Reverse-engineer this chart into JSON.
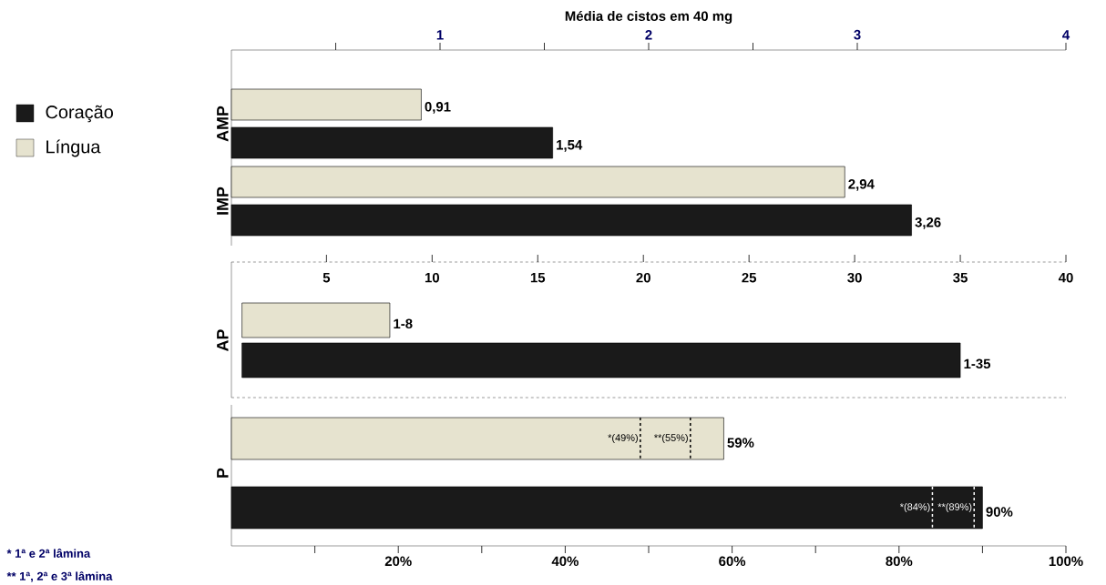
{
  "chart_data": [
    {
      "type": "bar",
      "orientation": "horizontal",
      "xlabel": "Média de cistos em 40 mg",
      "categories": [
        "AMP",
        "IMP"
      ],
      "series": [
        {
          "name": "Coração",
          "color": "#1a1a1a",
          "values": [
            1.54,
            3.26
          ],
          "value_labels": [
            "1,54",
            "3,26"
          ]
        },
        {
          "name": "Língua",
          "color": "#e6e3cf",
          "values": [
            0.91,
            2.94
          ],
          "value_labels": [
            "0,91",
            "2,94"
          ]
        }
      ],
      "xlim": [
        0,
        4
      ],
      "xticks": [
        {
          "value": 0.5,
          "label": null
        },
        1,
        {
          "value": 1.5,
          "label": null
        },
        2,
        {
          "value": 2.5,
          "label": null
        },
        3,
        4
      ],
      "legend": "left"
    },
    {
      "type": "bar",
      "orientation": "horizontal",
      "categories": [
        "AP"
      ],
      "series": [
        {
          "color": "#1a1a1a",
          "base": [
            1
          ],
          "values": [
            34
          ],
          "value_labels": [
            "1-35"
          ]
        },
        {
          "color": "#e6e3cf",
          "base": [
            1
          ],
          "values": [
            7
          ],
          "value_labels": [
            "1-8"
          ]
        }
      ],
      "xlim": [
        0.5,
        40
      ],
      "xticks": [
        5,
        10,
        15,
        20,
        25,
        30,
        35,
        40
      ]
    },
    {
      "type": "bar",
      "orientation": "horizontal",
      "categories": [
        "P"
      ],
      "series": [
        {
          "color": "#1a1a1a",
          "values": [
            90
          ],
          "value_labels": [
            "90%"
          ]
        },
        {
          "color": "#e6e3cf",
          "values": [
            59
          ],
          "value_labels": [
            "59%"
          ]
        }
      ],
      "xlim": [
        0,
        100
      ],
      "xticks": [
        {
          "value": 10,
          "label": null
        },
        {
          "value": 20,
          "label": "20%"
        },
        {
          "value": 30,
          "label": null
        },
        {
          "value": 40,
          "label": "40%"
        },
        {
          "value": 50,
          "label": null
        },
        {
          "value": 60,
          "label": "60%"
        },
        {
          "value": 70,
          "label": null
        },
        {
          "value": 80,
          "label": "80%"
        },
        {
          "value": 90,
          "label": null
        },
        {
          "value": 100,
          "label": "100%"
        }
      ],
      "ref_lines": [
        {
          "axis": "x",
          "value": 49,
          "label": "*(49%)",
          "color": "#000000",
          "line_style": "dashed"
        },
        {
          "axis": "x",
          "value": 55,
          "label": "**(55%)",
          "color": "#000000",
          "line_style": "dashed"
        },
        {
          "axis": "x",
          "value": 84,
          "label": "*(84%)",
          "color": "#ffffff",
          "line_style": "dashed"
        },
        {
          "axis": "x",
          "value": 89,
          "label": "**(89%)",
          "color": "#ffffff",
          "line_style": "dashed"
        }
      ],
      "annotations": [
        "* 1ª e 2ª lâmina",
        "** 1ª, 2ª e 3ª lâmina"
      ]
    }
  ]
}
